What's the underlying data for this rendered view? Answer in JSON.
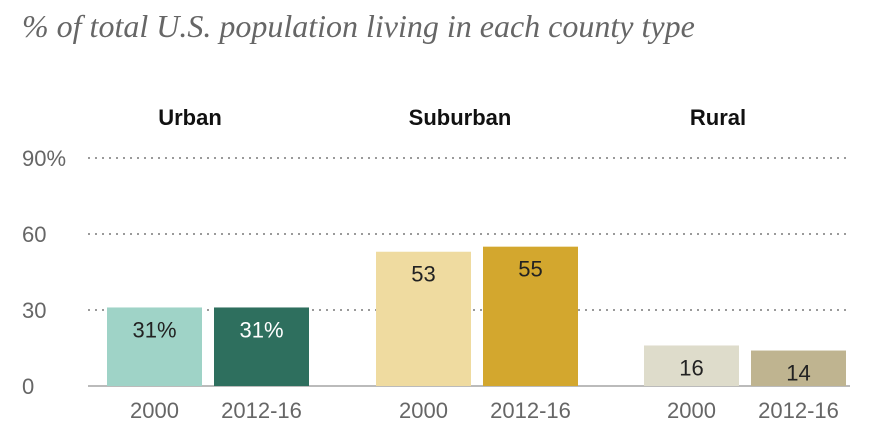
{
  "chart_data": {
    "type": "bar",
    "subtitle": "% of total U.S. population living in each county type",
    "groups": [
      "Urban",
      "Suburban",
      "Rural"
    ],
    "categories": [
      "2000",
      "2012-16"
    ],
    "ylim": [
      0,
      90
    ],
    "yticks": [
      "0",
      "30",
      "60",
      "90%"
    ],
    "grid": true,
    "bars": [
      {
        "group": "Urban",
        "category": "2000",
        "value": 31,
        "label": "31%",
        "color": "#9fd3c7"
      },
      {
        "group": "Urban",
        "category": "2012-16",
        "value": 31,
        "label": "31%",
        "color": "#2e6f5e"
      },
      {
        "group": "Suburban",
        "category": "2000",
        "value": 53,
        "label": "53",
        "color": "#efdba0"
      },
      {
        "group": "Suburban",
        "category": "2012-16",
        "value": 55,
        "label": "55",
        "color": "#d3a72e"
      },
      {
        "group": "Rural",
        "category": "2000",
        "value": 16,
        "label": "16",
        "color": "#dedccb"
      },
      {
        "group": "Rural",
        "category": "2012-16",
        "value": 14,
        "label": "14",
        "color": "#bfb490"
      }
    ]
  }
}
